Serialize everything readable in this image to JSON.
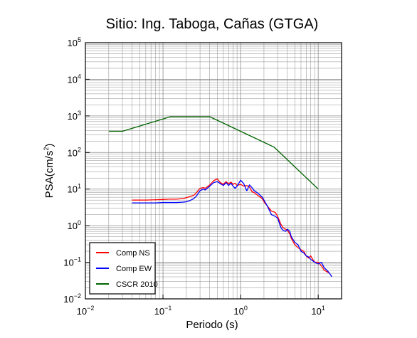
{
  "chart_data": {
    "type": "line",
    "title": "Sitio: Ing. Taboga, Cañas (GTGA)",
    "xlabel": "Periodo (s)",
    "ylabel_base": "PSA(cm/s",
    "ylabel_exp": "2",
    "ylabel_close": ")",
    "x_scale": "log",
    "y_scale": "log",
    "xlim": [
      0.01,
      20
    ],
    "ylim": [
      0.01,
      100000
    ],
    "grid": true,
    "legend_position": "bottom-left",
    "x_ticks": [
      {
        "value": 0.01,
        "base": "10",
        "exp": "−2"
      },
      {
        "value": 0.1,
        "base": "10",
        "exp": "−1"
      },
      {
        "value": 1,
        "base": "10",
        "exp": "0"
      },
      {
        "value": 10,
        "base": "10",
        "exp": "1"
      }
    ],
    "y_ticks": [
      {
        "value": 0.01,
        "base": "10",
        "exp": "−2"
      },
      {
        "value": 0.1,
        "base": "10",
        "exp": "−1"
      },
      {
        "value": 1,
        "base": "10",
        "exp": "0"
      },
      {
        "value": 10,
        "base": "10",
        "exp": "1"
      },
      {
        "value": 100,
        "base": "10",
        "exp": "2"
      },
      {
        "value": 1000,
        "base": "10",
        "exp": "3"
      },
      {
        "value": 10000,
        "base": "10",
        "exp": "4"
      },
      {
        "value": 100000,
        "base": "10",
        "exp": "5"
      }
    ],
    "series": [
      {
        "name": "Comp NS",
        "color": "#ff0000",
        "x": [
          0.04,
          0.06,
          0.08,
          0.1,
          0.12,
          0.15,
          0.18,
          0.2,
          0.22,
          0.25,
          0.27,
          0.3,
          0.33,
          0.35,
          0.4,
          0.45,
          0.5,
          0.55,
          0.6,
          0.65,
          0.7,
          0.75,
          0.8,
          0.85,
          0.9,
          1.0,
          1.1,
          1.2,
          1.3,
          1.4,
          1.5,
          1.7,
          1.9,
          2.0,
          2.2,
          2.5,
          2.8,
          3.0,
          3.3,
          3.5,
          3.8,
          4.0,
          4.3,
          4.5,
          5.0,
          5.5,
          6.0,
          6.5,
          7.0,
          7.5,
          8.0,
          8.5,
          9.0,
          10.0,
          11.0,
          12.0,
          13.0,
          14.0
        ],
        "values": [
          5.0,
          5.0,
          5.1,
          5.2,
          5.3,
          5.3,
          5.5,
          5.8,
          6.2,
          6.8,
          8.0,
          10.5,
          11.0,
          10.5,
          13.0,
          17.0,
          19.0,
          15.0,
          13.5,
          16.0,
          14.0,
          15.5,
          13.5,
          14.5,
          12.5,
          13.5,
          12.0,
          12.5,
          11.5,
          8.5,
          8.0,
          6.5,
          5.5,
          4.5,
          3.5,
          2.5,
          2.3,
          1.8,
          1.1,
          0.9,
          0.8,
          0.75,
          0.6,
          0.45,
          0.3,
          0.25,
          0.22,
          0.2,
          0.15,
          0.13,
          0.15,
          0.12,
          0.1,
          0.1,
          0.08,
          0.06,
          0.055,
          0.05
        ]
      },
      {
        "name": "Comp EW",
        "color": "#0000ff",
        "x": [
          0.04,
          0.06,
          0.08,
          0.1,
          0.12,
          0.15,
          0.18,
          0.2,
          0.22,
          0.25,
          0.27,
          0.3,
          0.33,
          0.35,
          0.4,
          0.45,
          0.5,
          0.55,
          0.6,
          0.65,
          0.7,
          0.75,
          0.8,
          0.85,
          0.9,
          1.0,
          1.1,
          1.2,
          1.3,
          1.4,
          1.5,
          1.7,
          1.9,
          2.0,
          2.2,
          2.5,
          2.8,
          3.0,
          3.3,
          3.5,
          3.8,
          4.0,
          4.3,
          4.5,
          5.0,
          5.5,
          6.0,
          6.5,
          7.0,
          7.5,
          8.0,
          8.5,
          9.0,
          10.0,
          11.0,
          12.0,
          13.0,
          14.0,
          15.0
        ],
        "values": [
          4.2,
          4.2,
          4.2,
          4.3,
          4.3,
          4.3,
          4.4,
          4.5,
          4.8,
          5.5,
          6.5,
          9.0,
          10.0,
          9.5,
          12.0,
          15.0,
          16.0,
          14.0,
          12.5,
          15.0,
          12.5,
          14.5,
          12.0,
          10.5,
          12.0,
          17.5,
          14.0,
          9.0,
          13.0,
          11.0,
          9.0,
          7.5,
          6.0,
          5.0,
          3.5,
          2.0,
          1.8,
          1.6,
          0.9,
          0.75,
          0.7,
          0.8,
          0.7,
          0.5,
          0.35,
          0.3,
          0.2,
          0.18,
          0.15,
          0.14,
          0.12,
          0.11,
          0.1,
          0.09,
          0.1,
          0.07,
          0.06,
          0.05,
          0.04
        ]
      },
      {
        "name": "CSCR 2010",
        "color": "#006400",
        "x": [
          0.02,
          0.03,
          0.125,
          0.4,
          2.7,
          10.0
        ],
        "values": [
          380,
          380,
          950,
          950,
          140,
          10
        ]
      }
    ]
  }
}
